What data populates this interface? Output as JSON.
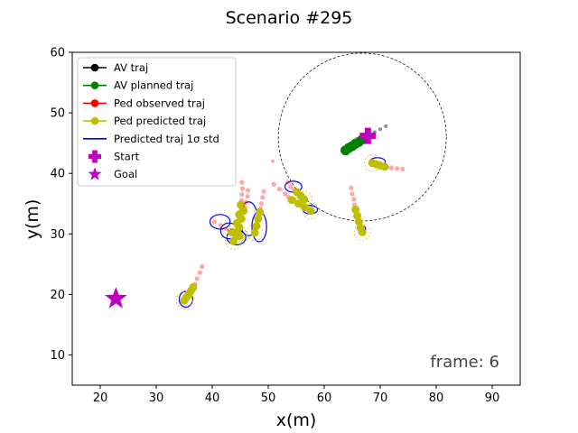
{
  "chart_data": {
    "type": "scatter",
    "title": "Scenario #295",
    "xlabel": "x(m)",
    "ylabel": "y(m)",
    "xlim": [
      15,
      95
    ],
    "ylim": [
      5,
      60
    ],
    "xticks": [
      20,
      30,
      40,
      50,
      60,
      70,
      80,
      90
    ],
    "yticks": [
      10,
      20,
      30,
      40,
      50,
      60
    ],
    "grid": false,
    "legend_position": "upper-left",
    "annotation": "frame: 6",
    "legend": [
      {
        "label": "AV traj",
        "kind": "line-marker",
        "color": "#000000"
      },
      {
        "label": "AV planned traj",
        "kind": "line-marker",
        "color": "#008000"
      },
      {
        "label": "Ped observed traj",
        "kind": "line-marker",
        "color": "#ff0000"
      },
      {
        "label": "Ped predicted traj",
        "kind": "line-marker",
        "color": "#bfbf00"
      },
      {
        "label": "Predicted traj 1σ std",
        "kind": "line",
        "color": "#0000ff"
      },
      {
        "label": "Start",
        "kind": "plus",
        "color": "#bf00bf"
      },
      {
        "label": "Goal",
        "kind": "star",
        "color": "#bf00bf"
      }
    ],
    "start": {
      "x": 67.8,
      "y": 46.2
    },
    "goal": {
      "x": 22.8,
      "y": 19.3
    },
    "av_sensing_circle": {
      "center": [
        66.8,
        46.0
      ],
      "radius_x": 15.0
    },
    "av_traj": [
      [
        71.0,
        47.8
      ],
      [
        70.0,
        47.3
      ],
      [
        69.0,
        46.8
      ],
      [
        68.0,
        46.3
      ]
    ],
    "av_planned": [
      [
        67.4,
        45.9
      ],
      [
        66.8,
        45.6
      ],
      [
        66.2,
        45.2
      ],
      [
        65.6,
        44.9
      ],
      [
        65.0,
        44.5
      ],
      [
        64.4,
        44.2
      ],
      [
        63.8,
        43.8
      ]
    ],
    "pedestrians": [
      {
        "observed": [
          [
            38.2,
            24.6
          ],
          [
            37.8,
            23.6
          ],
          [
            37.3,
            22.6
          ],
          [
            36.9,
            21.7
          ]
        ],
        "predicted": [
          [
            36.6,
            21.2
          ],
          [
            36.2,
            20.6
          ],
          [
            35.8,
            20.0
          ],
          [
            35.4,
            19.5
          ],
          [
            35.0,
            19.0
          ]
        ]
      },
      {
        "observed": [
          [
            40.4,
            32.0
          ],
          [
            41.5,
            31.4
          ],
          [
            42.5,
            30.8
          ],
          [
            43.1,
            30.5
          ]
        ],
        "predicted": [
          [
            43.5,
            30.3
          ],
          [
            44.2,
            29.9
          ],
          [
            44.9,
            29.6
          ]
        ]
      },
      {
        "observed": [
          [
            45.3,
            38.5
          ],
          [
            45.4,
            37.5
          ],
          [
            45.3,
            36.5
          ],
          [
            45.2,
            35.5
          ]
        ],
        "predicted": [
          [
            45.1,
            34.8
          ],
          [
            44.8,
            33.2
          ],
          [
            44.4,
            31.8
          ],
          [
            44.1,
            30.2
          ],
          [
            43.8,
            28.8
          ]
        ]
      },
      {
        "observed": [
          [
            46.4,
            37.2
          ],
          [
            46.3,
            36.2
          ],
          [
            46.0,
            35.2
          ],
          [
            45.8,
            34.4
          ]
        ],
        "predicted": [
          [
            45.6,
            33.8
          ],
          [
            45.2,
            32.5
          ],
          [
            44.8,
            31.1
          ],
          [
            44.6,
            30.0
          ]
        ]
      },
      {
        "observed": [
          [
            49.2,
            37.0
          ],
          [
            49.0,
            36.0
          ],
          [
            48.8,
            35.0
          ],
          [
            48.6,
            34.2
          ]
        ],
        "predicted": [
          [
            48.5,
            33.6
          ],
          [
            48.2,
            32.5
          ],
          [
            47.9,
            31.3
          ],
          [
            47.6,
            30.2
          ]
        ]
      },
      {
        "observed": [
          [
            51.0,
            38.2
          ],
          [
            52.0,
            37.4
          ],
          [
            53.0,
            36.6
          ],
          [
            53.6,
            36.1
          ]
        ],
        "predicted": [
          [
            54.2,
            35.6
          ],
          [
            55.4,
            35.0
          ],
          [
            56.5,
            34.4
          ],
          [
            57.6,
            33.8
          ]
        ]
      },
      {
        "observed": [
          [
            53.5,
            38.5
          ],
          [
            54.0,
            37.8
          ],
          [
            54.6,
            37.3
          ]
        ],
        "predicted": [
          [
            55.1,
            36.9
          ],
          [
            55.8,
            36.3
          ],
          [
            56.4,
            35.7
          ]
        ]
      },
      {
        "observed": [
          [
            64.8,
            37.6
          ],
          [
            65.0,
            36.6
          ],
          [
            65.3,
            35.7
          ],
          [
            65.4,
            34.8
          ]
        ],
        "predicted": [
          [
            65.6,
            34.0
          ],
          [
            65.9,
            33.0
          ],
          [
            66.2,
            32.0
          ],
          [
            66.5,
            31.0
          ],
          [
            66.8,
            30.3
          ]
        ]
      },
      {
        "observed": [
          [
            74.0,
            40.7
          ],
          [
            73.0,
            40.8
          ],
          [
            72.0,
            40.9
          ],
          [
            71.2,
            41.0
          ]
        ],
        "predicted": [
          [
            70.8,
            41.1
          ],
          [
            70.0,
            41.3
          ],
          [
            69.3,
            41.5
          ],
          [
            68.6,
            41.7
          ]
        ]
      }
    ],
    "std_contours": [
      {
        "center": [
          35.3,
          19.2
        ],
        "rx": 1.2,
        "ry": 1.3
      },
      {
        "center": [
          41.4,
          32.0
        ],
        "rx": 1.8,
        "ry": 1.2
      },
      {
        "center": [
          43.0,
          30.5
        ],
        "rx": 1.5,
        "ry": 1.3
      },
      {
        "center": [
          44.3,
          29.4
        ],
        "rx": 1.7,
        "ry": 1.2
      },
      {
        "center": [
          46.5,
          32.5
        ],
        "rx": 1.6,
        "ry": 2.8
      },
      {
        "center": [
          48.4,
          31.2
        ],
        "rx": 1.3,
        "ry": 2.5
      },
      {
        "center": [
          54.5,
          37.8
        ],
        "rx": 1.5,
        "ry": 0.9
      },
      {
        "center": [
          57.5,
          34.0
        ],
        "rx": 1.3,
        "ry": 0.7
      },
      {
        "center": [
          66.7,
          30.8
        ],
        "rx": 0.7,
        "ry": 0.6
      },
      {
        "center": [
          69.5,
          41.9
        ],
        "rx": 1.4,
        "ry": 0.7
      }
    ],
    "stray_observed_points": [
      [
        50.8,
        42.0
      ]
    ]
  }
}
